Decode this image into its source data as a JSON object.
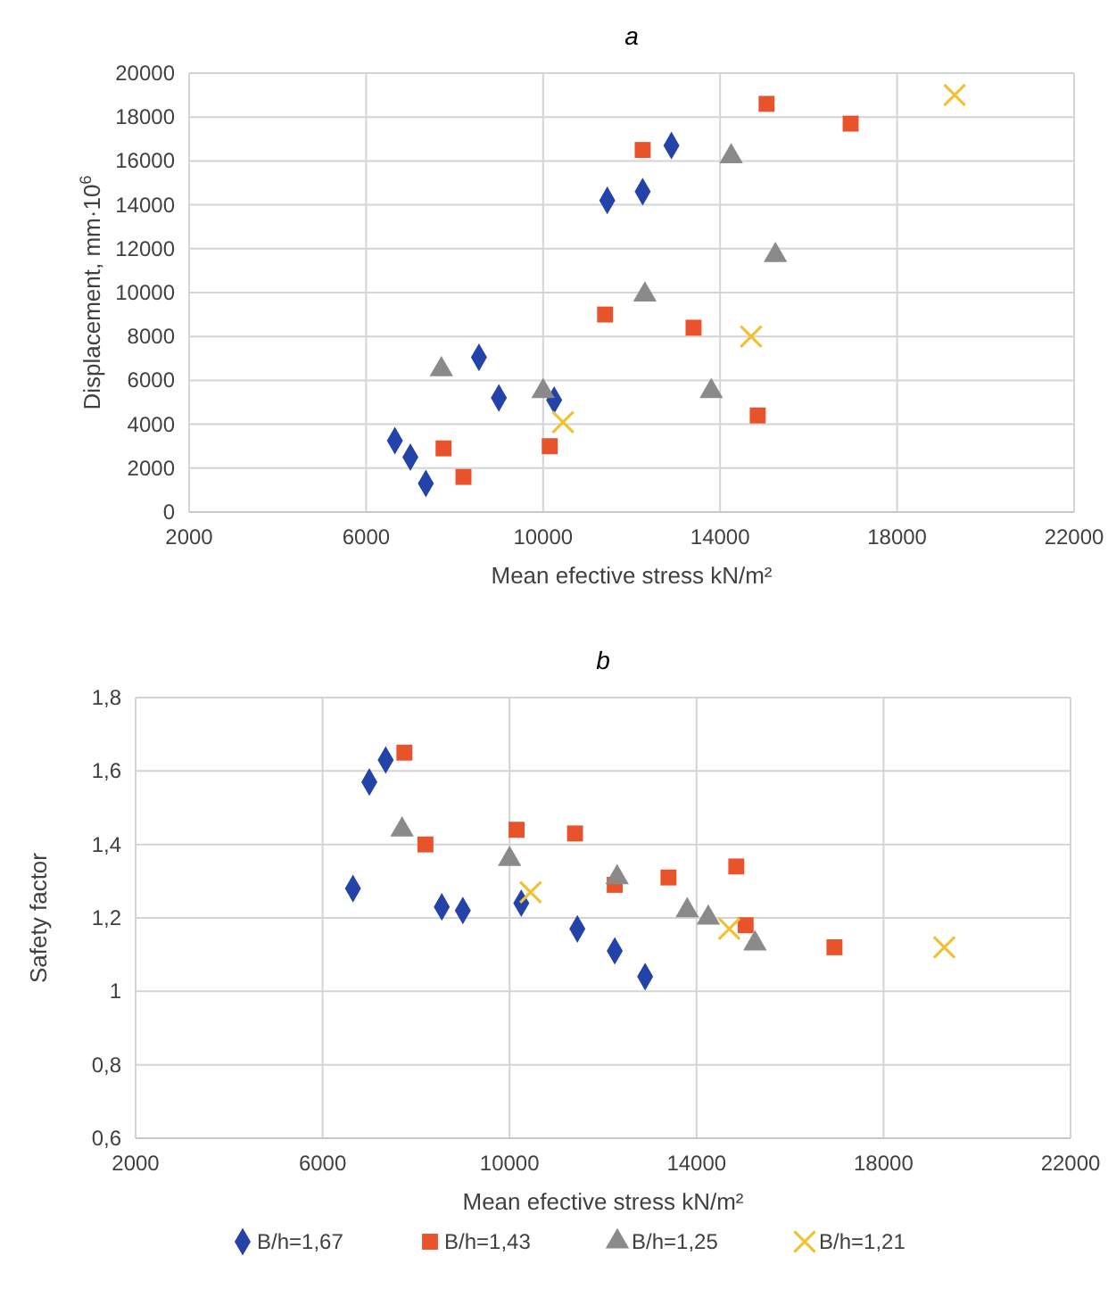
{
  "chart_data": [
    {
      "type": "scatter",
      "title": "a",
      "xlabel": "Mean efective stress kN/m²",
      "ylabel": "Displacement, mm·10$^{6}$",
      "xlim": [
        2000,
        22000
      ],
      "xticks": [
        2000,
        6000,
        10000,
        14000,
        18000,
        22000
      ],
      "ylim": [
        0,
        20000
      ],
      "yticks": [
        0,
        2000,
        4000,
        6000,
        8000,
        10000,
        12000,
        14000,
        16000,
        18000,
        20000
      ],
      "grid": true,
      "legend": false,
      "series": [
        {
          "color": "#2443a8",
          "marker": "diamond",
          "x": [
            6650,
            7000,
            7350,
            8550,
            9000,
            10250,
            11450,
            12250,
            12900
          ],
          "values": [
            3250,
            2500,
            1300,
            7050,
            5200,
            5100,
            14200,
            14600,
            16700
          ]
        },
        {
          "color": "#e8532b",
          "marker": "square",
          "x": [
            7750,
            8200,
            10150,
            11400,
            12250,
            13400,
            14850,
            15050,
            16950
          ],
          "values": [
            2900,
            1600,
            3000,
            9000,
            16500,
            8400,
            4400,
            18600,
            17700
          ]
        },
        {
          "color": "#8a8a8a",
          "marker": "triangle",
          "x": [
            7700,
            10000,
            12300,
            13800,
            14250,
            15250
          ],
          "values": [
            6500,
            5500,
            9900,
            5500,
            16200,
            11700
          ]
        },
        {
          "color": "#f2c133",
          "marker": "cross",
          "x": [
            10450,
            14700,
            19300
          ],
          "values": [
            4100,
            8000,
            19000
          ]
        }
      ]
    },
    {
      "type": "scatter",
      "title": "b",
      "xlabel": "Mean efective stress kN/m²",
      "ylabel": "Safety factor",
      "xlim": [
        2000,
        22000
      ],
      "xticks": [
        2000,
        6000,
        10000,
        14000,
        18000,
        22000
      ],
      "ylim": [
        0.6,
        1.8
      ],
      "yticks": [
        {
          "value": 0.6,
          "label": "0,6"
        },
        {
          "value": 0.8,
          "label": "0,8"
        },
        1,
        {
          "value": 1.2,
          "label": "1,2"
        },
        {
          "value": 1.4,
          "label": "1,4"
        },
        {
          "value": 1.6,
          "label": "1,6"
        },
        {
          "value": 1.8,
          "label": "1,8"
        }
      ],
      "grid": true,
      "legend": "bottom",
      "series": [
        {
          "name": "B/h=1,67",
          "color": "#2443a8",
          "marker": "diamond",
          "x": [
            6650,
            7000,
            7350,
            8550,
            9000,
            10250,
            11450,
            12250,
            12900
          ],
          "values": [
            1.28,
            1.57,
            1.63,
            1.23,
            1.22,
            1.24,
            1.17,
            1.11,
            1.04
          ]
        },
        {
          "name": "B/h=1,43",
          "color": "#e8532b",
          "marker": "square",
          "x": [
            7750,
            8200,
            10150,
            11400,
            12250,
            13400,
            14850,
            15050,
            16950
          ],
          "values": [
            1.65,
            1.4,
            1.44,
            1.43,
            1.29,
            1.31,
            1.34,
            1.18,
            1.12
          ]
        },
        {
          "name": "B/h=1,25",
          "color": "#8a8a8a",
          "marker": "triangle",
          "x": [
            7700,
            10000,
            12300,
            13800,
            14250,
            15250
          ],
          "values": [
            1.44,
            1.36,
            1.31,
            1.22,
            1.2,
            1.13
          ]
        },
        {
          "name": "B/h=1,21",
          "color": "#f2c133",
          "marker": "cross",
          "x": [
            10450,
            14700,
            19300
          ],
          "values": [
            1.27,
            1.17,
            1.12
          ]
        }
      ]
    }
  ]
}
